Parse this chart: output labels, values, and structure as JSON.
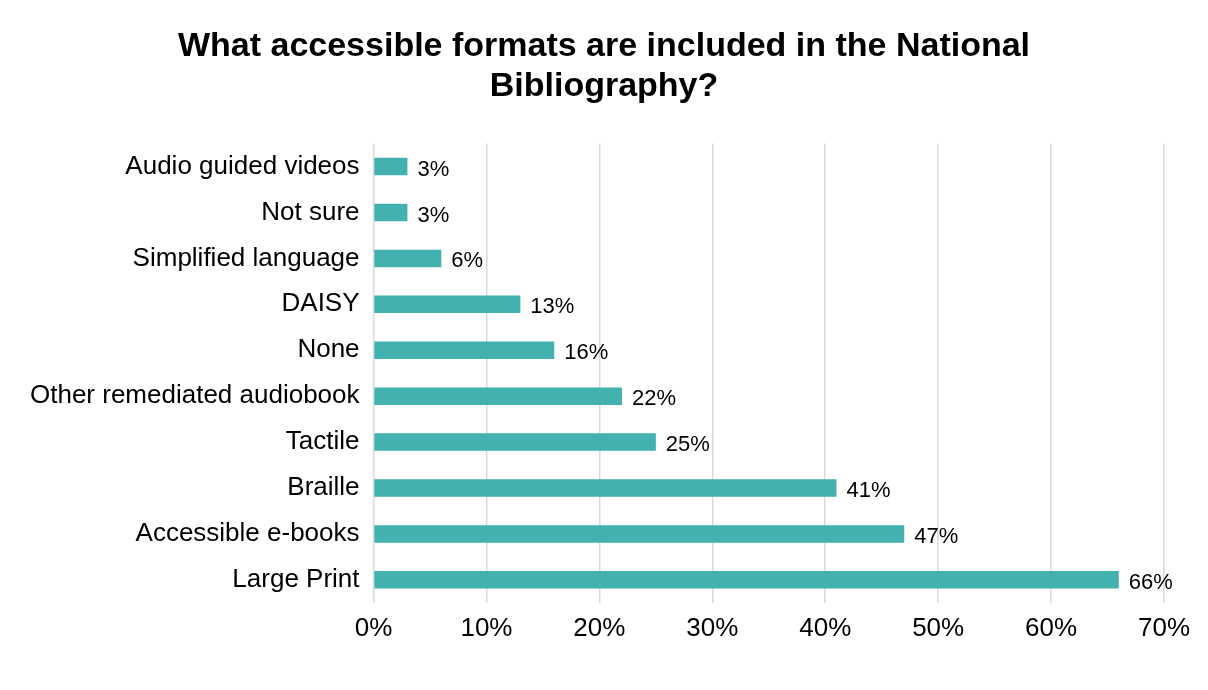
{
  "chart_data": {
    "type": "bar",
    "orientation": "horizontal",
    "title": "What accessible formats are included in the National Bibliography?",
    "categories": [
      "Audio guided videos",
      "Not sure",
      "Simplified language",
      "DAISY",
      "None",
      "Other remediated audiobook",
      "Tactile",
      "Braille",
      "Accessible e-books",
      "Large Print"
    ],
    "values": [
      3,
      3,
      6,
      13,
      16,
      22,
      25,
      41,
      47,
      66
    ],
    "value_labels": [
      "3%",
      "3%",
      "6%",
      "13%",
      "16%",
      "22%",
      "25%",
      "41%",
      "47%",
      "66%"
    ],
    "color": "#43b1b0",
    "xlim": [
      0,
      70
    ],
    "xticks": [
      {
        "value": 0,
        "label": "0%"
      },
      {
        "value": 10,
        "label": "10%"
      },
      {
        "value": 20,
        "label": "20%"
      },
      {
        "value": 30,
        "label": "30%"
      },
      {
        "value": 40,
        "label": "40%"
      },
      {
        "value": 50,
        "label": "50%"
      },
      {
        "value": 60,
        "label": "60%"
      },
      {
        "value": 70,
        "label": "70%"
      }
    ],
    "grid": "x",
    "legend": false
  }
}
